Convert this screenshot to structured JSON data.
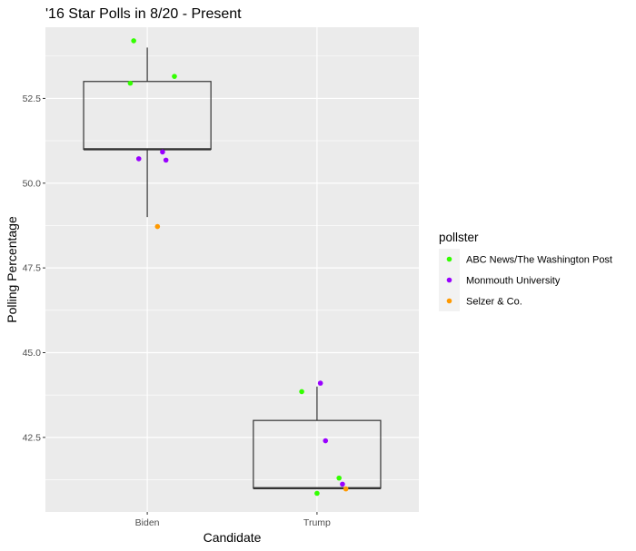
{
  "chart_data": {
    "type": "boxplot-with-jitter",
    "title": "'16 Star Polls in 8/20 - Present",
    "xlabel": "Candidate",
    "ylabel": "Polling Percentage",
    "categories": [
      "Biden",
      "Trump"
    ],
    "ylim": [
      40.3,
      54.6
    ],
    "yticks": [
      42.5,
      45.0,
      47.5,
      50.0,
      52.5
    ],
    "ytick_labels": [
      "42.5",
      "45.0",
      "47.5",
      "50.0",
      "52.5"
    ],
    "grid": true,
    "legend": {
      "title": "pollster",
      "placement": "right",
      "entries": [
        {
          "name": "ABC News/The Washington Post",
          "color": "#33ff00"
        },
        {
          "name": "Monmouth University",
          "color": "#9900ff"
        },
        {
          "name": "Selzer & Co.",
          "color": "#ff9900"
        }
      ]
    },
    "boxes": [
      {
        "category": "Biden",
        "min": 49,
        "q1": 51,
        "median": 51,
        "q3": 53,
        "max": 54
      },
      {
        "category": "Trump",
        "min": 41,
        "q1": 41,
        "median": 41,
        "q3": 43,
        "max": 44
      }
    ],
    "points": [
      {
        "category": "Biden",
        "jitter": -0.08,
        "y": 54.2,
        "pollster": "ABC News/The Washington Post"
      },
      {
        "category": "Biden",
        "jitter": -0.1,
        "y": 52.95,
        "pollster": "ABC News/The Washington Post"
      },
      {
        "category": "Biden",
        "jitter": 0.16,
        "y": 53.15,
        "pollster": "ABC News/The Washington Post"
      },
      {
        "category": "Biden",
        "jitter": -0.05,
        "y": 50.72,
        "pollster": "Monmouth University"
      },
      {
        "category": "Biden",
        "jitter": 0.09,
        "y": 50.92,
        "pollster": "Monmouth University"
      },
      {
        "category": "Biden",
        "jitter": 0.11,
        "y": 50.68,
        "pollster": "Monmouth University"
      },
      {
        "category": "Biden",
        "jitter": 0.06,
        "y": 48.72,
        "pollster": "Selzer & Co."
      },
      {
        "category": "Trump",
        "jitter": -0.09,
        "y": 43.85,
        "pollster": "ABC News/The Washington Post"
      },
      {
        "category": "Trump",
        "jitter": 0.0,
        "y": 40.85,
        "pollster": "ABC News/The Washington Post"
      },
      {
        "category": "Trump",
        "jitter": 0.13,
        "y": 41.3,
        "pollster": "ABC News/The Washington Post"
      },
      {
        "category": "Trump",
        "jitter": 0.02,
        "y": 44.1,
        "pollster": "Monmouth University"
      },
      {
        "category": "Trump",
        "jitter": 0.05,
        "y": 42.4,
        "pollster": "Monmouth University"
      },
      {
        "category": "Trump",
        "jitter": 0.15,
        "y": 41.12,
        "pollster": "Monmouth University"
      },
      {
        "category": "Trump",
        "jitter": 0.17,
        "y": 40.98,
        "pollster": "Selzer & Co."
      }
    ]
  }
}
